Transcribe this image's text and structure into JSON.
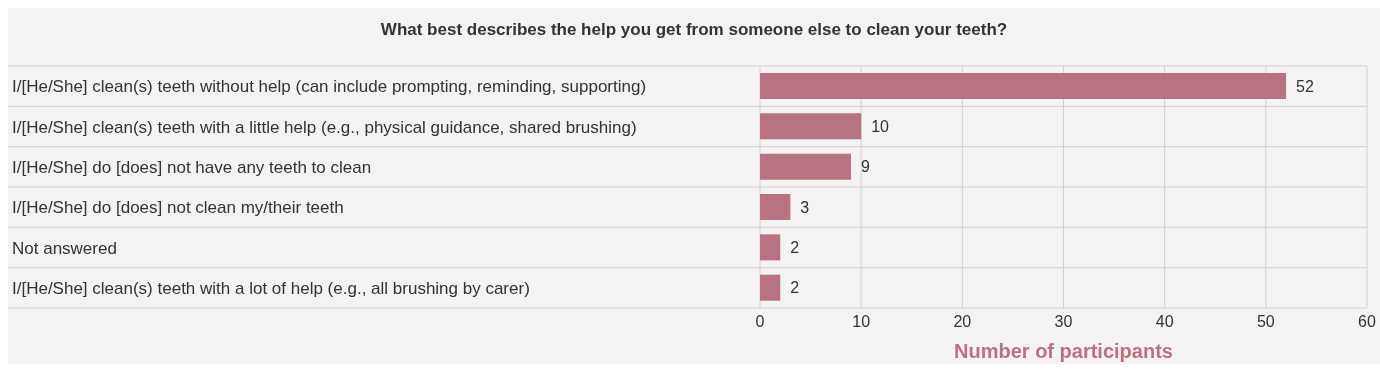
{
  "chart_data": {
    "type": "bar",
    "orientation": "horizontal",
    "title": "What best describes the help you get from someone else to clean your teeth?",
    "xlabel": "Number of participants",
    "categories": [
      "I/[He/She] clean(s) teeth without help (can include prompting, reminding, supporting)",
      "I/[He/She] clean(s) teeth with a little help (e.g., physical guidance, shared brushing)",
      "I/[He/She] do [does] not have any teeth to clean",
      "I/[He/She] do [does] not clean my/their teeth",
      "Not answered",
      "I/[He/She] clean(s) teeth with a lot of help (e.g., all brushing by carer)"
    ],
    "values": [
      52,
      10,
      9,
      3,
      2,
      2
    ],
    "color": "#b87382",
    "xlim": [
      0,
      60
    ],
    "xticks": [
      0,
      10,
      20,
      30,
      40,
      50,
      60
    ],
    "grid": "x",
    "data_labels": true
  }
}
